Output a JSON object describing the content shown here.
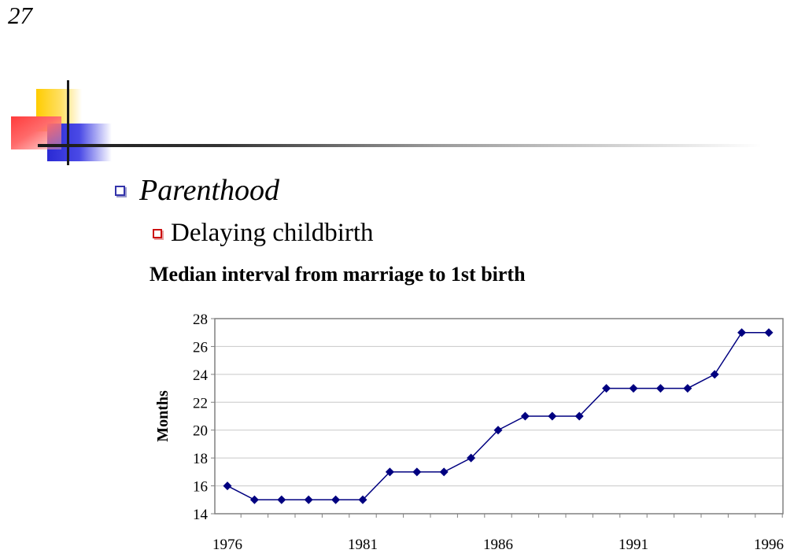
{
  "slide": {
    "number": "27",
    "bullet_level1": "Parenthood",
    "bullet_level2": "Delaying childbirth"
  },
  "colors": {
    "bullet_level1": "#3333aa",
    "bullet_level2": "#cc1111",
    "series_line": "#000080"
  },
  "chart_data": {
    "type": "line",
    "title": "Median interval from marriage to 1st birth",
    "xlabel": "",
    "ylabel": "Months",
    "x": [
      1976,
      1977,
      1978,
      1979,
      1980,
      1981,
      1982,
      1983,
      1984,
      1985,
      1986,
      1987,
      1988,
      1989,
      1990,
      1991,
      1992,
      1993,
      1994,
      1995,
      1996
    ],
    "x_tick_labels": [
      "1976",
      "1981",
      "1986",
      "1991",
      "1996"
    ],
    "y_tick_labels": [
      "14",
      "16",
      "18",
      "20",
      "22",
      "24",
      "26",
      "28"
    ],
    "ylim": [
      14,
      28
    ],
    "xlim": [
      1976,
      1996
    ],
    "grid": true,
    "marker": "diamond",
    "series": [
      {
        "values": [
          16,
          15,
          15,
          15,
          15,
          15,
          17,
          17,
          17,
          18,
          20,
          21,
          21,
          21,
          23,
          23,
          23,
          23,
          24,
          27,
          27
        ]
      }
    ]
  }
}
